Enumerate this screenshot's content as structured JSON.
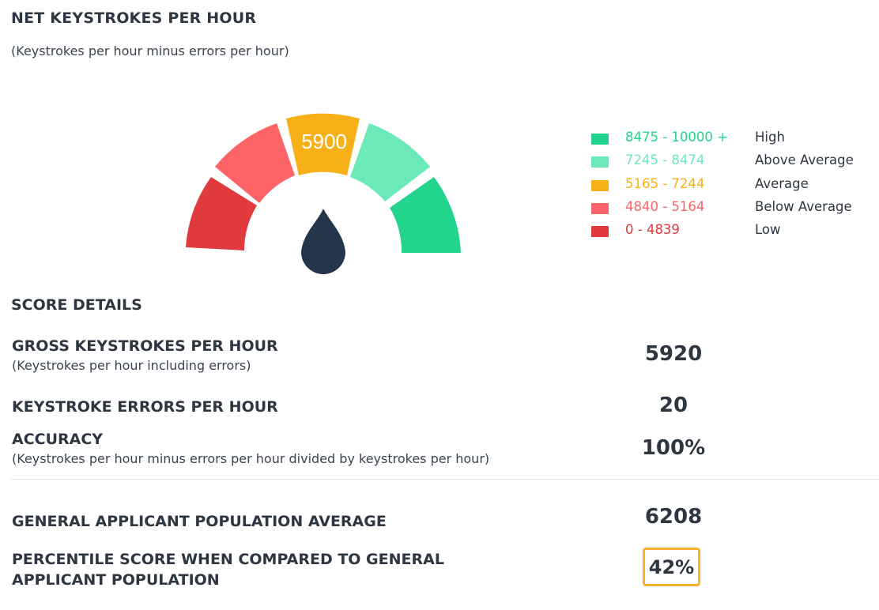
{
  "report": {
    "title": "NET KEYSTROKES PER HOUR",
    "subtitle": "(Keystrokes per hour minus errors per hour)"
  },
  "gauge": {
    "value": "5900",
    "active_segment": "Average",
    "segments": [
      {
        "name": "Low",
        "color": "#e03a3c"
      },
      {
        "name": "Below Average",
        "color": "#fc6467"
      },
      {
        "name": "Average",
        "color": "#f8b018"
      },
      {
        "name": "Above Average",
        "color": "#6ce9b8"
      },
      {
        "name": "High",
        "color": "#22d48c"
      }
    ],
    "needle_color": "#23364b"
  },
  "legend": [
    {
      "range": "8475 - 10000 +",
      "label": "High",
      "color": "#22d48c"
    },
    {
      "range": "7245 - 8474",
      "label": "Above Average",
      "color": "#6ce9b8"
    },
    {
      "range": "5165 - 7244",
      "label": "Average",
      "color": "#f8b018"
    },
    {
      "range": "4840 - 5164",
      "label": "Below Average",
      "color": "#fc6467"
    },
    {
      "range": "0 - 4839",
      "label": "Low",
      "color": "#e03a3c"
    }
  ],
  "details": {
    "section_title": "SCORE DETAILS",
    "gross": {
      "title": "GROSS KEYSTROKES PER HOUR",
      "note": "(Keystrokes per hour including errors)",
      "value": "5920"
    },
    "errors": {
      "title": "KEYSTROKE ERRORS PER HOUR",
      "value": "20"
    },
    "accuracy": {
      "title": "ACCURACY",
      "note": "(Keystrokes per hour minus errors per hour divided by keystrokes per hour)",
      "value": "100%"
    },
    "population_average": {
      "title": "GENERAL APPLICANT POPULATION AVERAGE",
      "value": "6208"
    },
    "percentile": {
      "title": "PERCENTILE SCORE WHEN COMPARED TO GENERAL APPLICANT POPULATION",
      "value": "42%",
      "highlight_color": "#f6b22a"
    }
  }
}
